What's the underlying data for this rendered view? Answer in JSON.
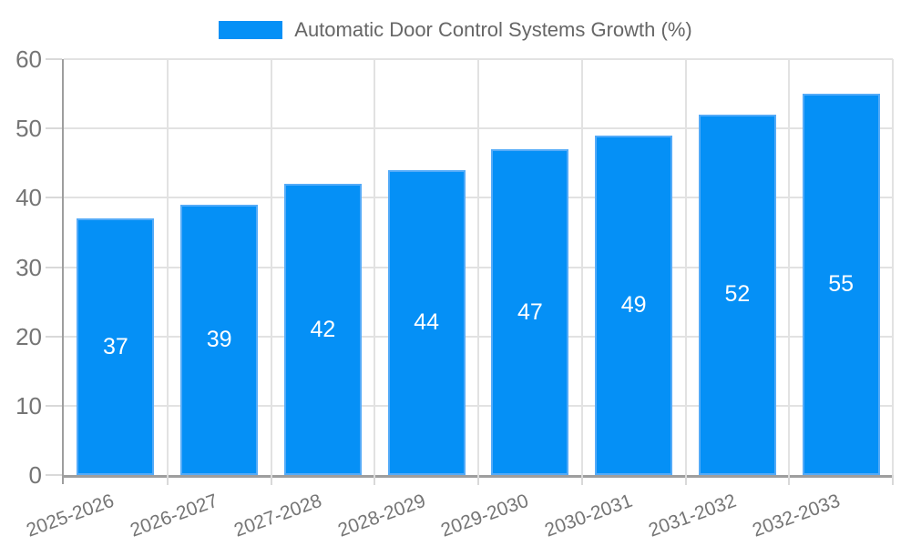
{
  "chart_data": {
    "type": "bar",
    "title": "Automatic Door Control Systems Growth (%)",
    "legend": [
      "Automatic Door Control Systems Growth (%)"
    ],
    "legend_position": "top-center",
    "categories": [
      "2025-2026",
      "2026-2027",
      "2027-2028",
      "2028-2029",
      "2029-2030",
      "2030-2031",
      "2031-2032",
      "2032-2033"
    ],
    "values": [
      37,
      39,
      42,
      44,
      47,
      49,
      52,
      55
    ],
    "xlabel": "",
    "ylabel": "",
    "ylim": [
      0,
      60
    ],
    "ytick_step": 10,
    "yticks": [
      0,
      10,
      20,
      30,
      40,
      50,
      60
    ],
    "grid": true,
    "value_labels": "inside-center",
    "x_label_rotation_deg": -20
  },
  "colors": {
    "bar_fill": "#0590F6",
    "bar_edge": "#54ABF8",
    "value_label": "#FFFFFF",
    "axis_line": "#9E9E9E",
    "grid_line": "#E2E2E2",
    "tick_mark": "#D9D9D9",
    "tick_label": "#757575",
    "legend_text": "#666666",
    "background": "#FFFFFF"
  }
}
